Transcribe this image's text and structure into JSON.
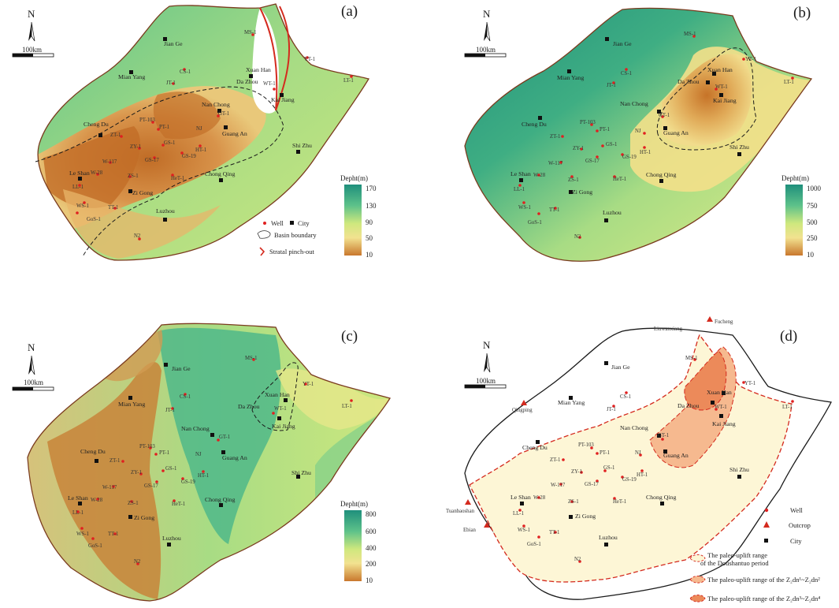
{
  "panels": [
    {
      "label": "(a)",
      "colorbar": {
        "title": "Depht(m)",
        "ticks": [
          "170",
          "130",
          "90",
          "50",
          "10"
        ]
      },
      "legend": {
        "well": "Well",
        "city": "City",
        "basin": "Basin boundary",
        "pinch": "Stratal pinch-out"
      }
    },
    {
      "label": "(b)",
      "colorbar": {
        "title": "Depht(m)",
        "ticks": [
          "1000",
          "750",
          "500",
          "250",
          "10"
        ]
      }
    },
    {
      "label": "(c)",
      "colorbar": {
        "title": "Depht(m)",
        "ticks": [
          "800",
          "600",
          "400",
          "200",
          "10"
        ]
      }
    },
    {
      "label": "(d)",
      "legend": {
        "well": "Well",
        "outcrop": "Outcrop",
        "city": "City",
        "range1a": "The paleo-uplift range",
        "range1b": "of the Doushantuo period",
        "range2": "The paleo-uplift range of the Z₂dn¹~Z₂dn²",
        "range3": "The paleo-uplift range of the Z₂dn³~Z₂dn⁴"
      },
      "outcrops": [
        "Fucheng",
        "Liuwanxiang",
        "Qingping",
        "Tuanbaoshan",
        "Ebian"
      ]
    }
  ],
  "north": "N",
  "scale": "100km",
  "cities": [
    "Jian Ge",
    "Mian Yang",
    "Xuan Han",
    "Da Zhou",
    "Kai Jiang",
    "Nan Chong",
    "Guang An",
    "Cheng Du",
    "Shi Zhu",
    "Chong Qing",
    "Le Shan",
    "Zi Gong",
    "Luzhou"
  ],
  "wells": [
    "MS-1",
    "CS-1",
    "JT-1",
    "YT-1",
    "LT-1",
    "WT-1",
    "GT-1",
    "NJ",
    "PT-103",
    "PT-1",
    "ZT-1",
    "ZY-1",
    "GS-1",
    "GS-17",
    "GS-19",
    "HT-1",
    "W-117",
    "W-28",
    "ZS-1",
    "HeT-1",
    "LL-1",
    "WS-1",
    "GoS-1",
    "TT-1",
    "N2"
  ],
  "colors": {
    "shallow": "#c9782d",
    "mid": "#f2e290",
    "light": "#cfe87e",
    "green": "#5ec28a",
    "deep": "#1f8f7c",
    "boundary": "#7a3b1e",
    "pinch": "#d42a1e",
    "well": "#e02020",
    "city": "#1a1a1a",
    "uplift_fill": "#fdf6d6",
    "uplift2": "#f6b98f",
    "uplift3": "#ec8a5a"
  }
}
